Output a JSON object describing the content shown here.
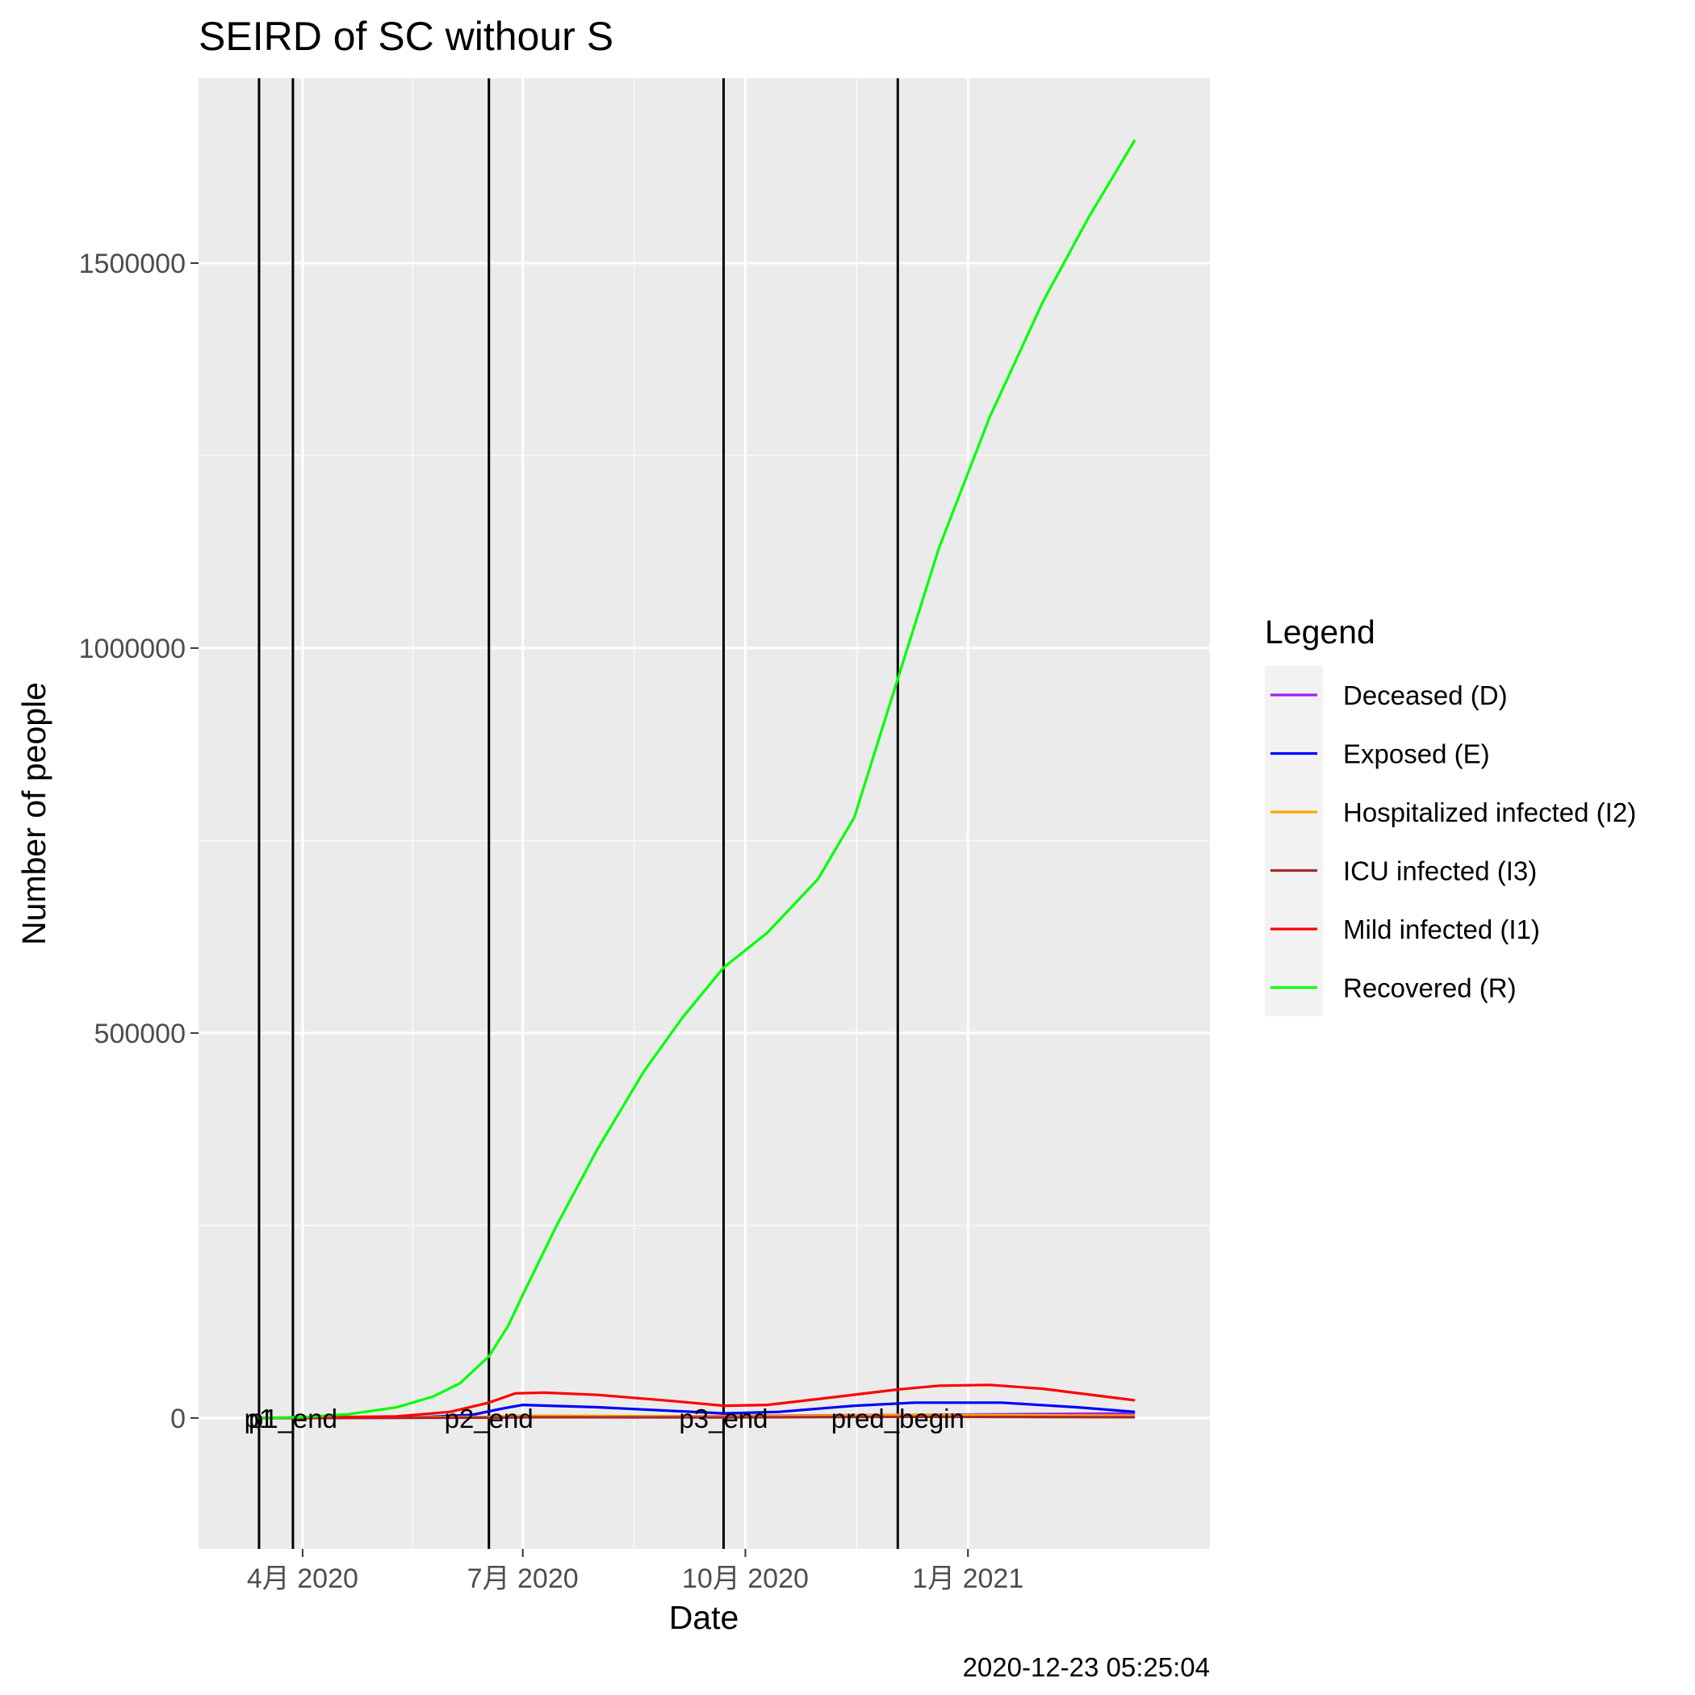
{
  "chart_data": {
    "type": "line",
    "title": "SEIRD of SC withour S",
    "xlabel": "Date",
    "ylabel": "Number of people",
    "caption": "2020-12-23 05:25:04",
    "legend_title": "Legend",
    "legend_position": "right",
    "grid": true,
    "ylim": [
      -170000,
      1740000
    ],
    "xlim": [
      "2020-02-18",
      "2021-04-11"
    ],
    "x_ticks": [
      {
        "date": "2020-04-01",
        "label": "4月 2020"
      },
      {
        "date": "2020-07-01",
        "label": "7月 2020"
      },
      {
        "date": "2020-10-01",
        "label": "10月 2020"
      },
      {
        "date": "2021-01-01",
        "label": "1月 2021"
      }
    ],
    "y_ticks": [
      0,
      500000,
      1000000,
      1500000
    ],
    "y_tick_labels": [
      "0",
      "500000",
      "1000000",
      "1500000"
    ],
    "vlines": [
      {
        "date": "2020-03-14",
        "label": "p1"
      },
      {
        "date": "2020-03-28",
        "label": "p1_end"
      },
      {
        "date": "2020-06-17",
        "label": "p2_end"
      },
      {
        "date": "2020-09-22",
        "label": "p3_end"
      },
      {
        "date": "2020-12-03",
        "label": "pred_begin"
      }
    ],
    "series": [
      {
        "name": "Deceased (D)",
        "color": "#a020f0",
        "points": [
          [
            "2020-03-14",
            0
          ],
          [
            "2020-06-17",
            500
          ],
          [
            "2020-09-22",
            2500
          ],
          [
            "2020-12-03",
            4000
          ],
          [
            "2021-03-11",
            6000
          ]
        ]
      },
      {
        "name": "Exposed (E)",
        "color": "#0000ff",
        "points": [
          [
            "2020-03-14",
            0
          ],
          [
            "2020-05-15",
            500
          ],
          [
            "2020-06-10",
            4000
          ],
          [
            "2020-06-22",
            12000
          ],
          [
            "2020-07-01",
            17000
          ],
          [
            "2020-08-01",
            14000
          ],
          [
            "2020-09-22",
            6000
          ],
          [
            "2020-10-15",
            8000
          ],
          [
            "2020-11-15",
            16000
          ],
          [
            "2020-12-10",
            20000
          ],
          [
            "2021-01-15",
            20000
          ],
          [
            "2021-02-15",
            14000
          ],
          [
            "2021-03-11",
            8000
          ]
        ]
      },
      {
        "name": "Hospitalized infected (I2)",
        "color": "#ffa500",
        "points": [
          [
            "2020-03-14",
            0
          ],
          [
            "2020-06-17",
            1500
          ],
          [
            "2020-07-01",
            3000
          ],
          [
            "2020-09-22",
            2000
          ],
          [
            "2020-12-10",
            4000
          ],
          [
            "2021-03-11",
            3000
          ]
        ]
      },
      {
        "name": "ICU infected (I3)",
        "color": "#a52a2a",
        "points": [
          [
            "2020-03-14",
            0
          ],
          [
            "2020-06-17",
            500
          ],
          [
            "2020-07-01",
            1000
          ],
          [
            "2020-09-22",
            800
          ],
          [
            "2020-12-10",
            1500
          ],
          [
            "2021-03-11",
            1000
          ]
        ]
      },
      {
        "name": "Mild infected (I1)",
        "color": "#ff0000",
        "points": [
          [
            "2020-03-14",
            0
          ],
          [
            "2020-05-10",
            2000
          ],
          [
            "2020-06-01",
            8000
          ],
          [
            "2020-06-17",
            20000
          ],
          [
            "2020-06-28",
            32000
          ],
          [
            "2020-07-10",
            33000
          ],
          [
            "2020-08-01",
            30000
          ],
          [
            "2020-09-01",
            22000
          ],
          [
            "2020-09-22",
            16000
          ],
          [
            "2020-10-10",
            17000
          ],
          [
            "2020-11-01",
            25000
          ],
          [
            "2020-12-03",
            37000
          ],
          [
            "2020-12-20",
            42000
          ],
          [
            "2021-01-10",
            43000
          ],
          [
            "2021-02-01",
            38000
          ],
          [
            "2021-03-11",
            23000
          ]
        ]
      },
      {
        "name": "Recovered (R)",
        "color": "#00ff00",
        "points": [
          [
            "2020-03-14",
            0
          ],
          [
            "2020-04-01",
            1000
          ],
          [
            "2020-04-20",
            5000
          ],
          [
            "2020-05-10",
            14000
          ],
          [
            "2020-05-25",
            28000
          ],
          [
            "2020-06-05",
            45000
          ],
          [
            "2020-06-17",
            80000
          ],
          [
            "2020-06-25",
            120000
          ],
          [
            "2020-07-01",
            160000
          ],
          [
            "2020-07-15",
            250000
          ],
          [
            "2020-08-01",
            350000
          ],
          [
            "2020-08-20",
            450000
          ],
          [
            "2020-09-05",
            520000
          ],
          [
            "2020-09-22",
            585000
          ],
          [
            "2020-10-10",
            630000
          ],
          [
            "2020-10-31",
            700000
          ],
          [
            "2020-11-15",
            780000
          ],
          [
            "2020-12-03",
            960000
          ],
          [
            "2020-12-20",
            1130000
          ],
          [
            "2021-01-10",
            1300000
          ],
          [
            "2021-02-01",
            1450000
          ],
          [
            "2021-02-20",
            1560000
          ],
          [
            "2021-03-11",
            1660000
          ]
        ]
      }
    ]
  }
}
